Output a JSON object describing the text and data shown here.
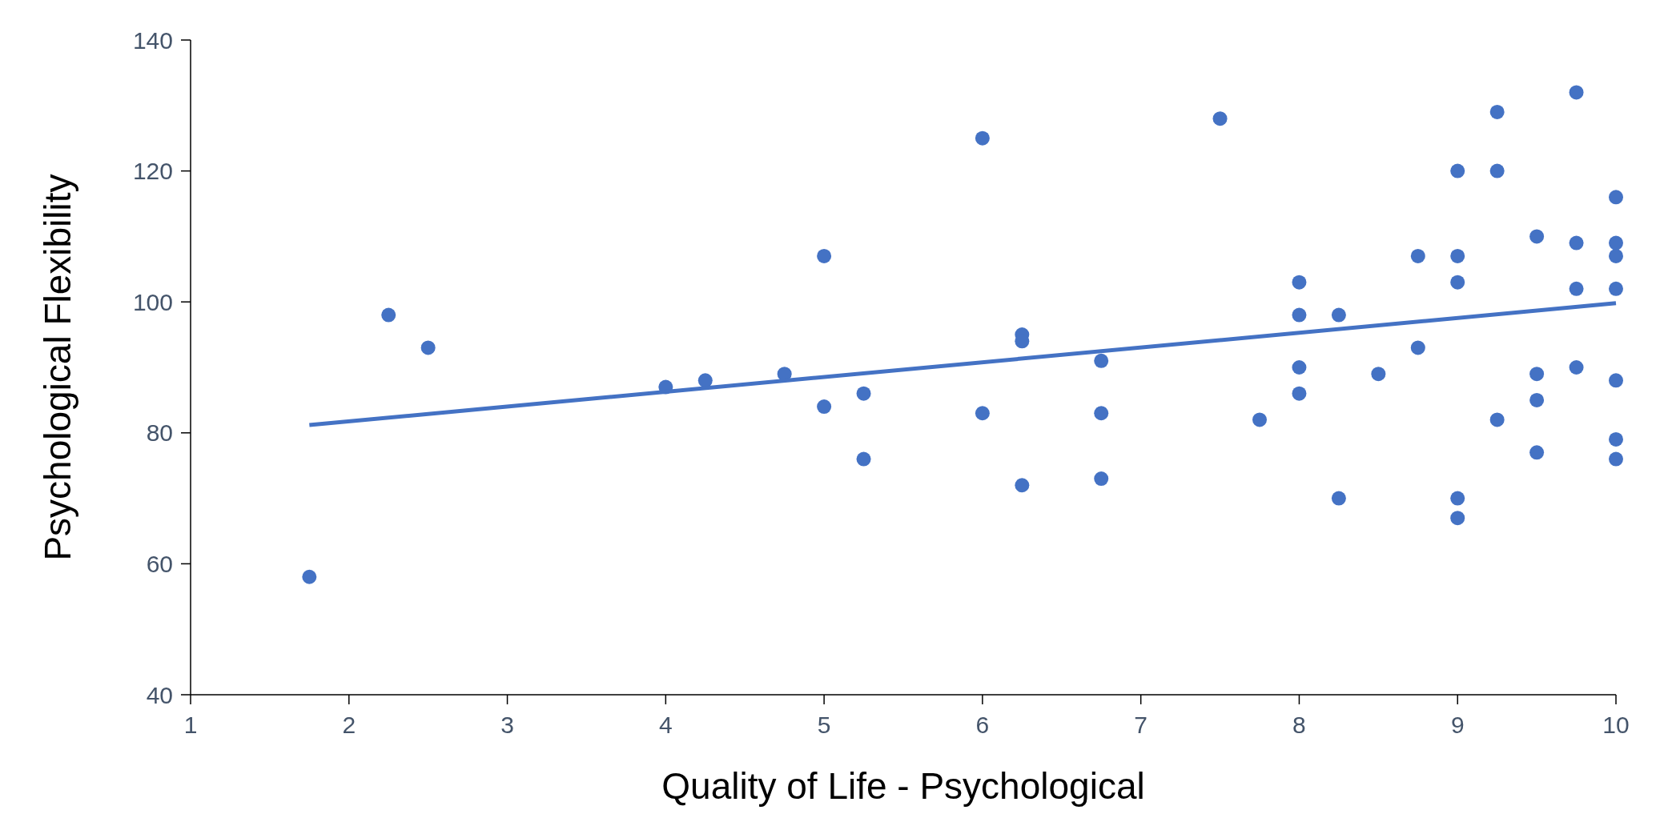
{
  "chart_data": {
    "type": "scatter",
    "xlabel": "Quality of Life - Psychological",
    "ylabel": "Psychological Flexibility",
    "xlim": [
      1,
      10
    ],
    "xticks": [
      1,
      2,
      3,
      4,
      5,
      6,
      7,
      8,
      9,
      10
    ],
    "ylim": [
      40,
      140
    ],
    "yticks": [
      40,
      60,
      80,
      100,
      120,
      140
    ],
    "grid": false,
    "series": [
      {
        "color": "#4472c4",
        "marker": "circle",
        "x": [
          1.75,
          2.25,
          2.5,
          4,
          4.25,
          4.75,
          5,
          5,
          5.25,
          5.25,
          6,
          6,
          6.25,
          6.25,
          6.25,
          6.75,
          6.75,
          6.75,
          7.5,
          7.75,
          8,
          8,
          8,
          8,
          8.25,
          8.25,
          8.5,
          8.75,
          8.75,
          9,
          9,
          9,
          9,
          9,
          9.25,
          9.25,
          9.25,
          9.5,
          9.5,
          9.5,
          9.5,
          9.75,
          9.75,
          9.75,
          9.75,
          10,
          10,
          10,
          10,
          10,
          10,
          10
        ],
        "values": [
          58,
          98,
          93,
          87,
          88,
          89,
          107,
          84,
          86,
          76,
          125,
          83,
          95,
          94,
          72,
          91,
          83,
          73,
          128,
          82,
          103,
          98,
          90,
          86,
          98,
          70,
          89,
          107,
          93,
          120,
          107,
          103,
          70,
          67,
          129,
          120,
          82,
          110,
          89,
          85,
          77,
          132,
          109,
          102,
          90,
          116,
          109,
          107,
          102,
          88,
          79,
          76
        ]
      },
      {
        "type": "line",
        "color": "#4472c4",
        "marker": "none",
        "line_style": "solid",
        "x": [
          1.75,
          10
        ],
        "values": [
          81.2,
          99.8
        ]
      }
    ]
  }
}
